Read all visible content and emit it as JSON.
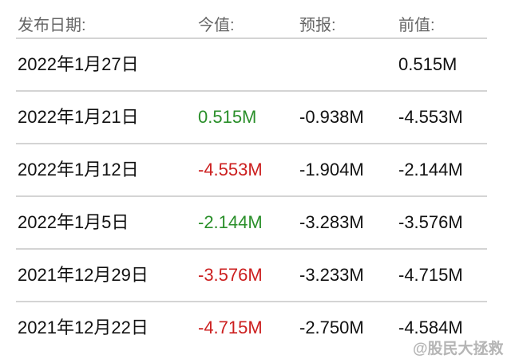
{
  "header": {
    "date": "发布日期:",
    "actual": "今值:",
    "forecast": "预报:",
    "previous": "前值:"
  },
  "colors": {
    "positive": "#2a8f2a",
    "negative": "#cc1f1f",
    "text": "#111111"
  },
  "rows": [
    {
      "date": "2022年1月27日",
      "actual": "",
      "actual_color": "",
      "forecast": "",
      "previous": "0.515M"
    },
    {
      "date": "2022年1月21日",
      "actual": "0.515M",
      "actual_color": "green",
      "forecast": "-0.938M",
      "previous": "-4.553M"
    },
    {
      "date": "2022年1月12日",
      "actual": "-4.553M",
      "actual_color": "red",
      "forecast": "-1.904M",
      "previous": "-2.144M"
    },
    {
      "date": "2022年1月5日",
      "actual": "-2.144M",
      "actual_color": "green",
      "forecast": "-3.283M",
      "previous": "-3.576M"
    },
    {
      "date": "2021年12月29日",
      "actual": "-3.576M",
      "actual_color": "red",
      "forecast": "-3.233M",
      "previous": "-4.715M"
    },
    {
      "date": "2021年12月22日",
      "actual": "-4.715M",
      "actual_color": "red",
      "forecast": "-2.750M",
      "previous": "-4.584M"
    }
  ],
  "watermark": "@股民大拯救"
}
